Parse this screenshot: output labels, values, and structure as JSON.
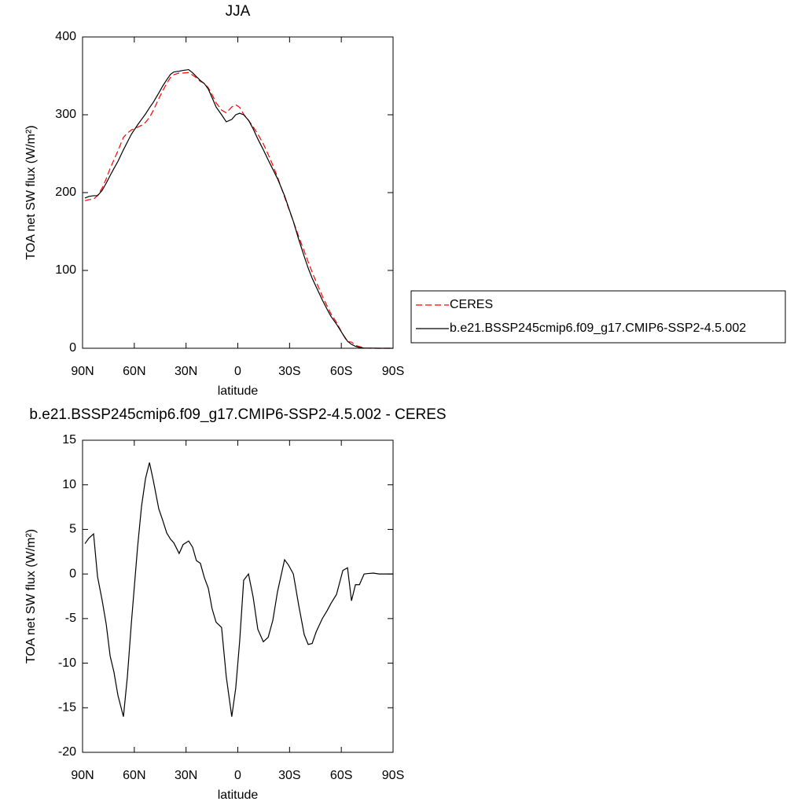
{
  "chart_data": [
    {
      "type": "line",
      "title": "JJA",
      "x_label": "latitude",
      "y_label": "TOA net SW flux (W/m²)",
      "x": [
        88.6,
        86.4,
        83.6,
        81.3,
        78.6,
        76.3,
        74.0,
        71.8,
        69.5,
        66.3,
        64.0,
        61.7,
        58.1,
        55.8,
        53.5,
        51.2,
        49.0,
        45.8,
        43.5,
        41.2,
        39.0,
        37.1,
        34.0,
        31.7,
        28.5,
        26.2,
        24.0,
        21.7,
        19.4,
        17.1,
        14.9,
        12.6,
        9.4,
        6.7,
        3.5,
        1.2,
        -1.1,
        -3.4,
        -6.2,
        -8.9,
        -11.6,
        -14.8,
        -17.6,
        -20.3,
        -23.0,
        -27.1,
        -29.4,
        -32.2,
        -35.3,
        -38.5,
        -40.8,
        -43.1,
        -45.4,
        -49.0,
        -51.8,
        -54.0,
        -57.2,
        -60.9,
        -63.6,
        -65.9,
        -68.2,
        -70.5,
        -73.2,
        -75.5,
        -78.6,
        -81.8,
        -85.5,
        -90
      ],
      "series": [
        {
          "name": "CERES",
          "color": "#ff0000",
          "dash": true,
          "values": [
            189.6,
            191,
            191.5,
            196.3,
            206,
            217.6,
            231.2,
            242,
            253.6,
            271,
            276.5,
            280.5,
            284,
            286.4,
            290.3,
            296.5,
            305.5,
            320.7,
            331,
            340.4,
            348.1,
            351.5,
            353.7,
            353.7,
            354.3,
            351,
            347.5,
            342.8,
            340.4,
            334.6,
            325.9,
            315.4,
            306,
            302.5,
            310,
            312.8,
            309.5,
            300.7,
            293,
            284.6,
            275.2,
            262.6,
            249.1,
            235.2,
            220,
            194.4,
            180,
            163,
            143.5,
            124.8,
            110.9,
            97.8,
            85.5,
            67,
            54.1,
            44.3,
            33.3,
            17.6,
            8.3,
            8,
            3.7,
            2.2,
            0.3,
            0.05,
            0,
            0,
            0,
            0
          ]
        },
        {
          "name": "b.e21.BSSP245cmip6.f09_g17.CMIP6-SSP2-4.5.002",
          "color": "#000000",
          "dash": false,
          "values": [
            193,
            195,
            196,
            196,
            203,
            212,
            222,
            231,
            240,
            255,
            265,
            275,
            287,
            294,
            301,
            309,
            316,
            328,
            337,
            345,
            352,
            355,
            356,
            357,
            358,
            354,
            349,
            344,
            340,
            333,
            322,
            310,
            300,
            291,
            294,
            300,
            302,
            300,
            293,
            282,
            269,
            255,
            242,
            230,
            218,
            196,
            181,
            163,
            140,
            118,
            103,
            90,
            79,
            62,
            50,
            41,
            31,
            18,
            9,
            5,
            2.5,
            1,
            0.3,
            0.1,
            0.1,
            0,
            0,
            0
          ]
        }
      ],
      "xlim": [
        90,
        -90
      ],
      "xticks": [
        {
          "value": 90,
          "label": "90N"
        },
        {
          "value": 60,
          "label": "60N"
        },
        {
          "value": 30,
          "label": "30N"
        },
        0,
        {
          "value": -30,
          "label": "30S"
        },
        {
          "value": -60,
          "label": "60S"
        },
        {
          "value": -90,
          "label": "90S"
        }
      ],
      "ylim": [
        0,
        400
      ],
      "yticks": [
        0,
        100,
        200,
        300,
        400
      ],
      "legend": "right"
    },
    {
      "type": "line",
      "title": "b.e21.BSSP245cmip6.f09_g17.CMIP6-SSP2-4.5.002 - CERES",
      "x_label": "latitude",
      "y_label": "TOA net SW flux (W/m²)",
      "x": [
        88.6,
        86.4,
        83.6,
        81.3,
        78.6,
        76.3,
        74.0,
        71.8,
        69.5,
        66.3,
        64.0,
        61.7,
        58.1,
        55.8,
        53.5,
        51.2,
        49.0,
        45.8,
        43.5,
        41.2,
        39.0,
        37.1,
        34.0,
        31.7,
        28.5,
        26.2,
        24.0,
        21.7,
        19.4,
        17.1,
        14.9,
        12.6,
        9.4,
        6.7,
        3.5,
        1.2,
        -1.1,
        -3.4,
        -6.2,
        -8.9,
        -11.6,
        -14.8,
        -17.6,
        -20.3,
        -23.0,
        -27.1,
        -29.4,
        -32.2,
        -35.3,
        -38.5,
        -40.8,
        -43.1,
        -45.4,
        -49.0,
        -51.8,
        -54.0,
        -57.2,
        -60.9,
        -63.6,
        -65.9,
        -68.2,
        -70.5,
        -73.2,
        -75.5,
        -78.6,
        -81.8,
        -85.5,
        -90
      ],
      "series": [
        {
          "color": "#000000",
          "dash": false,
          "values": [
            3.4,
            4.0,
            4.5,
            -0.3,
            -3,
            -5.6,
            -9.2,
            -11,
            -13.6,
            -16,
            -11.5,
            -5.5,
            3,
            7.6,
            10.7,
            12.5,
            10.5,
            7.3,
            6.0,
            4.6,
            3.9,
            3.5,
            2.3,
            3.3,
            3.7,
            3.0,
            1.5,
            1.2,
            -0.4,
            -1.6,
            -3.9,
            -5.4,
            -6,
            -11.5,
            -16,
            -12.8,
            -7.5,
            -0.7,
            0,
            -2.6,
            -6.2,
            -7.6,
            -7.1,
            -5.2,
            -2.0,
            1.6,
            1.0,
            0,
            -3.5,
            -6.8,
            -7.9,
            -7.8,
            -6.5,
            -5.0,
            -4.1,
            -3.3,
            -2.3,
            0.4,
            0.7,
            -3.0,
            -1.2,
            -1.2,
            0,
            0.05,
            0.1,
            0,
            0,
            0
          ]
        }
      ],
      "xlim": [
        90,
        -90
      ],
      "xticks": [
        {
          "value": 90,
          "label": "90N"
        },
        {
          "value": 60,
          "label": "60N"
        },
        {
          "value": 30,
          "label": "30N"
        },
        0,
        {
          "value": -30,
          "label": "30S"
        },
        {
          "value": -60,
          "label": "60S"
        },
        {
          "value": -90,
          "label": "90S"
        }
      ],
      "ylim": [
        -20,
        15
      ],
      "yticks": [
        -20,
        -15,
        -10,
        -5,
        0,
        5,
        10,
        15
      ]
    }
  ]
}
